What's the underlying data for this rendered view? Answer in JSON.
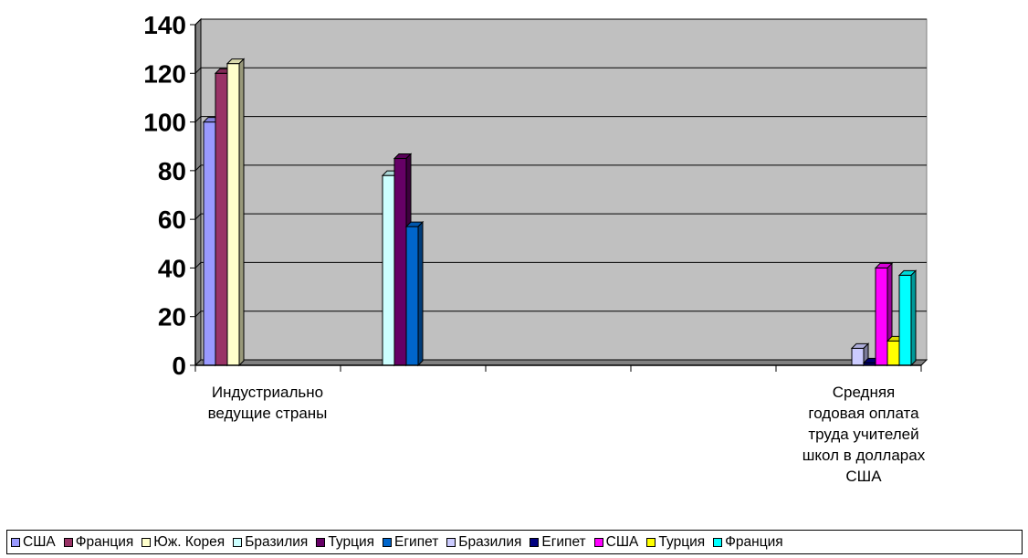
{
  "chart_data": {
    "type": "bar",
    "ylim": [
      0,
      140
    ],
    "yticks": [
      0,
      20,
      40,
      60,
      80,
      100,
      120,
      140
    ],
    "grid": true,
    "legend_position": "bottom",
    "category_labels": [
      {
        "lines": [
          "Индустриально",
          "ведущие страны"
        ]
      },
      {
        "lines": [
          "Средняя",
          "годовая оплата",
          "труда учителей",
          "школ в долларах",
          "США"
        ]
      }
    ],
    "series": [
      {
        "name": "США",
        "color": "#9999ff",
        "value": 100,
        "group": 1
      },
      {
        "name": "Франция",
        "color": "#993366",
        "value": 120,
        "group": 1
      },
      {
        "name": "Юж. Корея",
        "color": "#ffffcc",
        "value": 124,
        "group": 1
      },
      {
        "name": "Бразилия",
        "color": "#ccffff",
        "value": 78,
        "group": 2
      },
      {
        "name": "Турция",
        "color": "#660066",
        "value": 85,
        "group": 2
      },
      {
        "name": "Египет",
        "color": "#0066cc",
        "value": 57,
        "group": 2
      },
      {
        "name": "Бразилия",
        "color": "#ccccff",
        "value": 7,
        "group": 3
      },
      {
        "name": "Египет",
        "color": "#000080",
        "value": 1,
        "group": 3
      },
      {
        "name": "США",
        "color": "#ff00ff",
        "value": 40,
        "group": 3
      },
      {
        "name": "Турция",
        "color": "#ffff00",
        "value": 10,
        "group": 3
      },
      {
        "name": "Франция",
        "color": "#00ffff",
        "value": 37,
        "group": 3
      }
    ]
  },
  "colors": {
    "plot_background": "#c0c0c0",
    "gridline": "#000000"
  }
}
